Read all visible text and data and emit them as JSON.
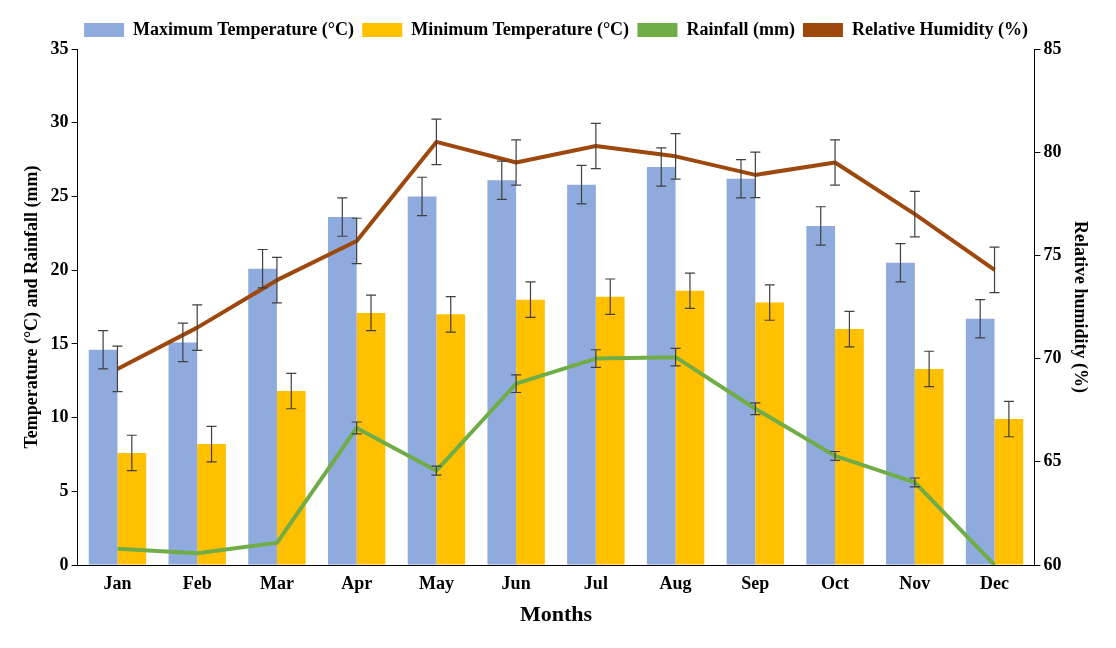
{
  "chart_data": {
    "type": "bar",
    "xlabel": "Months",
    "ylabel": "Temperature (°C) and Rainfall (mm)",
    "y2label": "Relative humidity (%)",
    "categories": [
      "Jan",
      "Feb",
      "Mar",
      "Apr",
      "May",
      "Jun",
      "Jul",
      "Aug",
      "Sep",
      "Oct",
      "Nov",
      "Dec"
    ],
    "series": [
      {
        "name": "Maximum Temperature (°C)",
        "color": "#8faadc",
        "values": [
          14.6,
          15.1,
          20.1,
          23.6,
          25.0,
          26.1,
          25.8,
          27.0,
          26.2,
          23.0,
          20.5,
          16.7
        ],
        "errors": [
          1.3,
          1.3,
          1.3,
          1.3,
          1.3,
          1.3,
          1.3,
          1.3,
          1.3,
          1.3,
          1.3,
          1.3
        ]
      },
      {
        "name": "Minimum Temperature (°C)",
        "color": "#ffc000",
        "values": [
          7.6,
          8.2,
          11.8,
          17.1,
          17.0,
          18.0,
          18.2,
          18.6,
          17.8,
          16.0,
          13.3,
          9.9
        ],
        "errors": [
          1.2,
          1.2,
          1.2,
          1.2,
          1.2,
          1.2,
          1.2,
          1.2,
          1.2,
          1.2,
          1.2,
          1.2
        ]
      },
      {
        "name": "Rainfall (mm)",
        "type": "line",
        "color": "#70ad47",
        "values": [
          1.1,
          0.8,
          1.5,
          9.3,
          6.4,
          12.3,
          14.0,
          14.1,
          10.6,
          7.4,
          5.6,
          0
        ],
        "errors": [
          null,
          null,
          null,
          0.4,
          0.3,
          0.6,
          0.6,
          0.6,
          0.4,
          0.3,
          0.3,
          null
        ]
      },
      {
        "name": "Relative Humidity (%)",
        "type": "line",
        "axis": "y2",
        "color": "#9e480e",
        "values": [
          69.5,
          71.5,
          73.8,
          75.7,
          80.5,
          79.5,
          80.3,
          79.8,
          78.9,
          79.5,
          77.0,
          74.3
        ],
        "errors": [
          1.1,
          1.1,
          1.1,
          1.1,
          1.1,
          1.1,
          1.1,
          1.1,
          1.1,
          1.1,
          1.1,
          1.1
        ]
      }
    ],
    "ylim": [
      0,
      35
    ],
    "yticks": [
      0,
      5,
      10,
      15,
      20,
      25,
      30,
      35
    ],
    "y2lim": [
      60,
      85
    ],
    "y2ticks": [
      60,
      65,
      70,
      75,
      80,
      85
    ],
    "legend": "top",
    "grid": false,
    "marker": "none",
    "line_style": "solid"
  }
}
